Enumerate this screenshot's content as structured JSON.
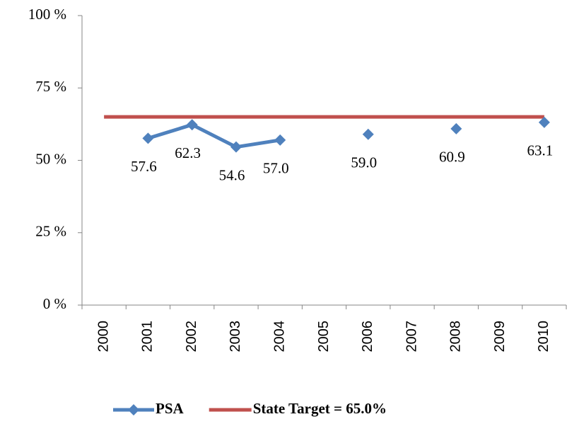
{
  "chart_data": {
    "type": "line",
    "categories": [
      "2000",
      "2001",
      "2002",
      "2003",
      "2004",
      "2005",
      "2006",
      "2007",
      "2008",
      "2009",
      "2010"
    ],
    "series": [
      {
        "name": "PSA",
        "color": "#4f81bd",
        "marker": "diamond",
        "values": [
          null,
          57.6,
          62.3,
          54.6,
          57.0,
          null,
          59.0,
          null,
          60.9,
          null,
          63.1
        ],
        "value_labels": [
          null,
          "57.6",
          "62.3",
          "54.6",
          "57.0",
          null,
          "59.0",
          null,
          "60.9",
          null,
          "63.1"
        ]
      },
      {
        "name": "State Target = 65.0%",
        "color": "#c0504d",
        "values": [
          65,
          65,
          65,
          65,
          65,
          65,
          65,
          65,
          65,
          65,
          65
        ]
      }
    ],
    "ylim": [
      0,
      100
    ],
    "yticks": [
      {
        "value": 0,
        "label": "0 %"
      },
      {
        "value": 25,
        "label": "25 %"
      },
      {
        "value": 50,
        "label": "50 %"
      },
      {
        "value": 75,
        "label": "75 %"
      },
      {
        "value": 100,
        "label": "100 %"
      }
    ],
    "grid": false,
    "legend": "bottom"
  }
}
